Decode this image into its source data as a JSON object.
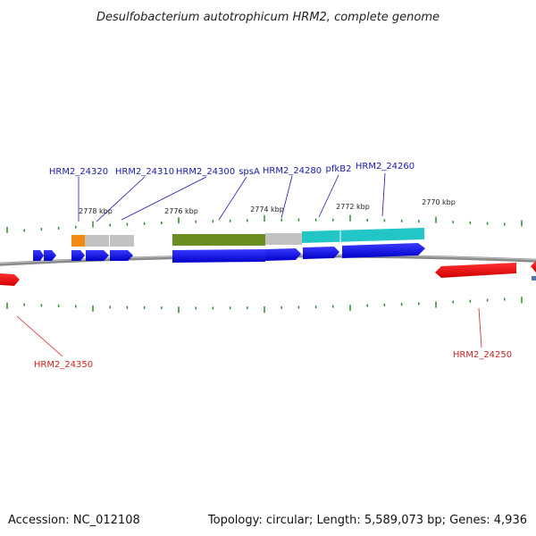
{
  "title": "Desulfobacterium autotrophicum HRM2, complete genome",
  "footer": {
    "accession": "Accession: NC_012108",
    "summary": "Topology: circular; Length: 5,589,073 bp; Genes: 4,936"
  },
  "colors": {
    "forward_label": "#1a1aaa",
    "reverse_label": "#cc2222",
    "forward_gene": "#0b0bd6",
    "reverse_gene": "#e00000",
    "tick": "#2e8b2e",
    "backbone": "#808080",
    "feature_orange": "#f08a10",
    "feature_gray": "#c0c0c0",
    "feature_olive": "#6b8e23",
    "feature_cyan": "#20c8c8"
  },
  "scale": {
    "kbp_labels": [
      "2778 kbp",
      "2776 kbp",
      "2774 kbp",
      "2772 kbp",
      "2770 kbp"
    ]
  },
  "forward_labels": [
    "HRM2_24320",
    "HRM2_24310",
    "HRM2_24300",
    "spsA",
    "HRM2_24280",
    "pfkB2",
    "HRM2_24260"
  ],
  "reverse_labels": [
    "HRM2_24350",
    "HRM2_24250"
  ]
}
